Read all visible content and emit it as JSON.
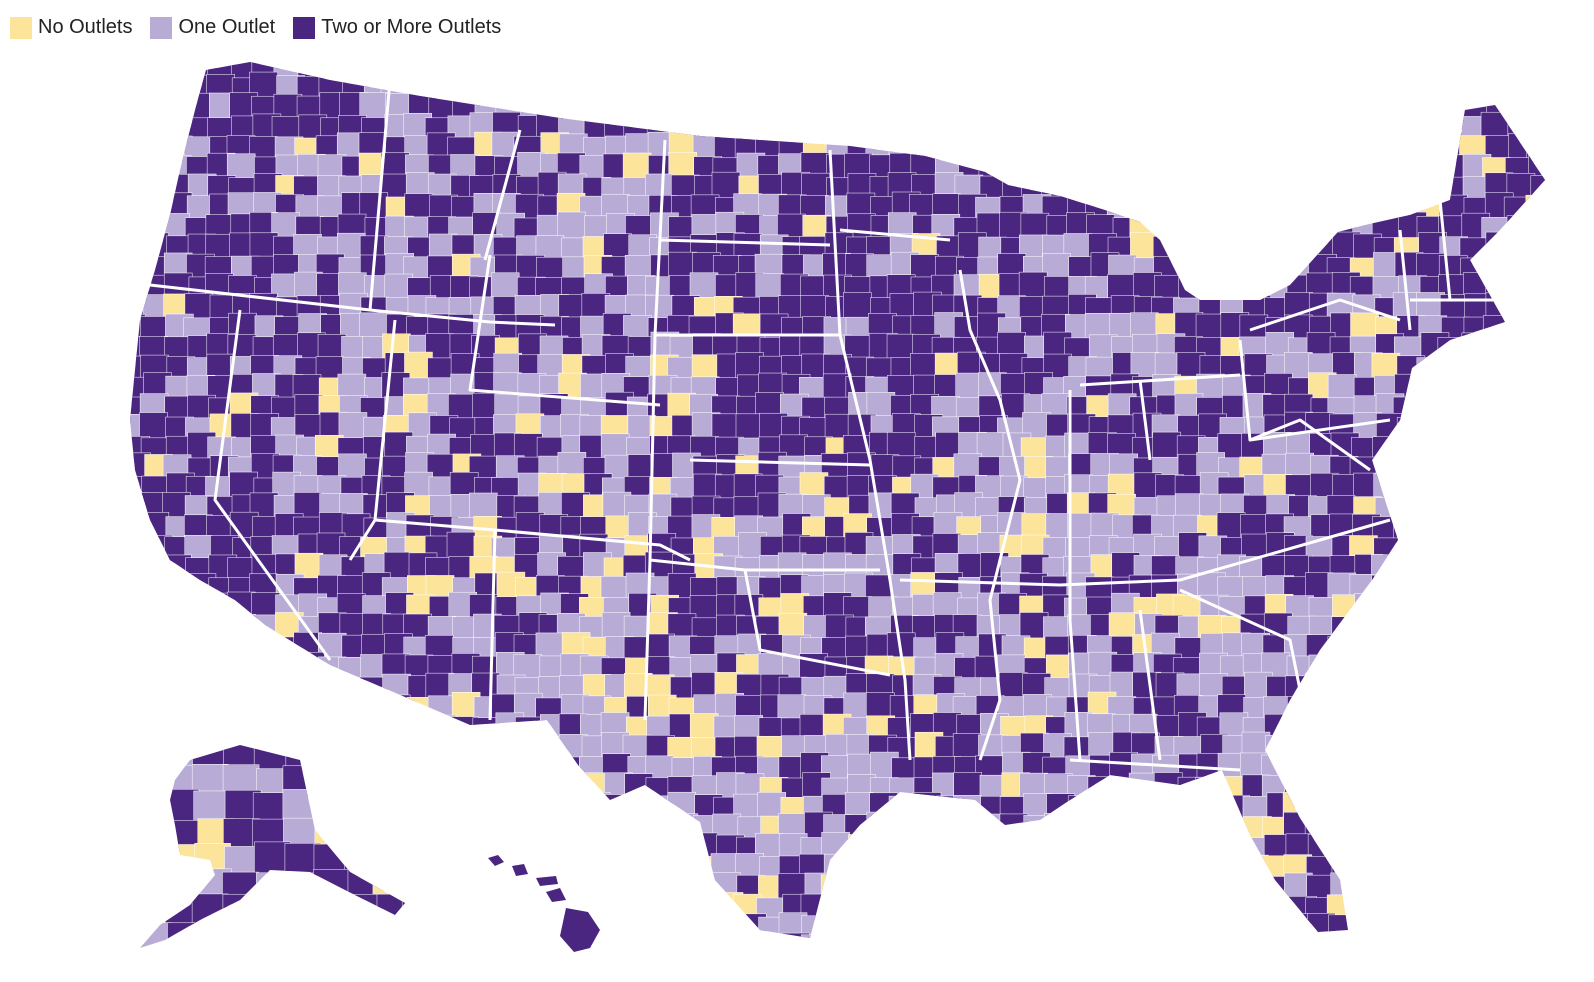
{
  "legend": {
    "items": [
      {
        "label": "No Outlets",
        "color": "#fde49b"
      },
      {
        "label": "One Outlet",
        "color": "#b8acd6"
      },
      {
        "label": "Two or More Outlets",
        "color": "#4a2680"
      }
    ]
  },
  "colors": {
    "none": "#fde49b",
    "one": "#b8acd6",
    "two_plus": "#4a2680",
    "background": "#ffffff",
    "border": "#ffffff"
  }
}
